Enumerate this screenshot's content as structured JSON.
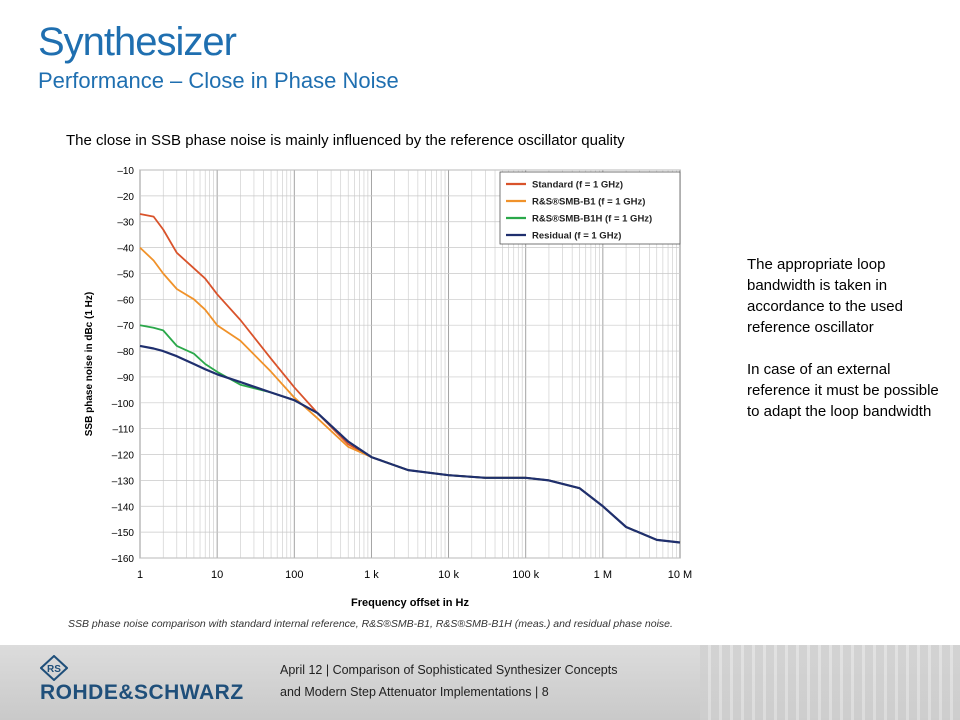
{
  "slide": {
    "title": "Synthesizer",
    "subtitle": "Performance – Close in Phase Noise",
    "intro": "The close in SSB phase noise is mainly influenced by the reference oscillator quality",
    "side_text": [
      "The appropriate loop bandwidth is taken in accordance to the used reference oscillator",
      "In case of an external reference it must be possible to adapt the loop bandwidth"
    ],
    "caption": "SSB phase noise comparison with standard internal reference, R&S®SMB-B1, R&S®SMB-B1H (meas.) and residual phase noise."
  },
  "footer": {
    "line1": "April 12  |  Comparison of Sophisticated Synthesizer Concepts",
    "line2": "and Modern Step Attenuator Implementations  |  8",
    "logo_text": "ROHDE&SCHWARZ",
    "logo_icon": "rs-diamond-logo"
  },
  "colors": {
    "title": "#1f6fb0",
    "standard": "#d9532b",
    "smb_b1": "#f0922a",
    "smb_b1h": "#2aa84a",
    "residual": "#1f2f6e"
  },
  "chart_data": {
    "type": "line",
    "xlabel": "Frequency offset in Hz",
    "ylabel": "SSB phase noise in dBc (1 Hz)",
    "xscale": "log",
    "xlim": [
      1,
      10000000
    ],
    "ylim": [
      -160,
      -10
    ],
    "x_tick_labels": [
      "1",
      "10",
      "100",
      "1 k",
      "10 k",
      "100 k",
      "1 M",
      "10 M"
    ],
    "y_ticks": [
      -10,
      -20,
      -30,
      -40,
      -50,
      -60,
      -70,
      -80,
      -90,
      -100,
      -110,
      -120,
      -130,
      -140,
      -150,
      -160
    ],
    "grid": true,
    "legend_position": "top-right",
    "series": [
      {
        "name": "Standard (f = 1 GHz)",
        "x": [
          1,
          1.5,
          2,
          3,
          5,
          7,
          10,
          20,
          50,
          100,
          200,
          500,
          1000,
          3000,
          10000,
          30000,
          100000,
          200000,
          500000,
          1000000,
          2000000,
          5000000,
          10000000
        ],
        "y": [
          -27,
          -28,
          -33,
          -42,
          -48,
          -52,
          -58,
          -68,
          -83,
          -94,
          -104,
          -116,
          -121,
          -126,
          -128,
          -129,
          -129,
          -130,
          -133,
          -140,
          -148,
          -153,
          -154
        ]
      },
      {
        "name": "R&S®SMB-B1 (f = 1 GHz)",
        "x": [
          1,
          1.5,
          2,
          3,
          5,
          7,
          10,
          20,
          50,
          100,
          200,
          500,
          1000,
          3000,
          10000,
          30000,
          100000,
          200000,
          500000,
          1000000,
          2000000,
          5000000,
          10000000
        ],
        "y": [
          -40,
          -45,
          -50,
          -56,
          -60,
          -64,
          -70,
          -76,
          -88,
          -98,
          -106,
          -117,
          -121,
          -126,
          -128,
          -129,
          -129,
          -130,
          -133,
          -140,
          -148,
          -153,
          -154
        ]
      },
      {
        "name": "R&S®SMB-B1H (f = 1 GHz)",
        "x": [
          1,
          1.5,
          2,
          3,
          5,
          7,
          10,
          20,
          50,
          100,
          200,
          500,
          1000,
          3000,
          10000,
          30000,
          100000,
          200000,
          500000,
          1000000,
          2000000,
          5000000,
          10000000
        ],
        "y": [
          -70,
          -71,
          -72,
          -78,
          -81,
          -85,
          -88,
          -93,
          -96,
          -99,
          -104,
          -115,
          -121,
          -126,
          -128,
          -129,
          -129,
          -130,
          -133,
          -140,
          -148,
          -153,
          -154
        ]
      },
      {
        "name": "Residual (f = 1 GHz)",
        "x": [
          1,
          1.5,
          2,
          3,
          5,
          7,
          10,
          20,
          50,
          100,
          200,
          500,
          1000,
          3000,
          10000,
          30000,
          100000,
          200000,
          500000,
          1000000,
          2000000,
          5000000,
          10000000
        ],
        "y": [
          -78,
          -79,
          -80,
          -82,
          -85,
          -87,
          -89,
          -92,
          -96,
          -99,
          -104,
          -115,
          -121,
          -126,
          -128,
          -129,
          -129,
          -130,
          -133,
          -140,
          -148,
          -153,
          -154
        ]
      }
    ]
  }
}
